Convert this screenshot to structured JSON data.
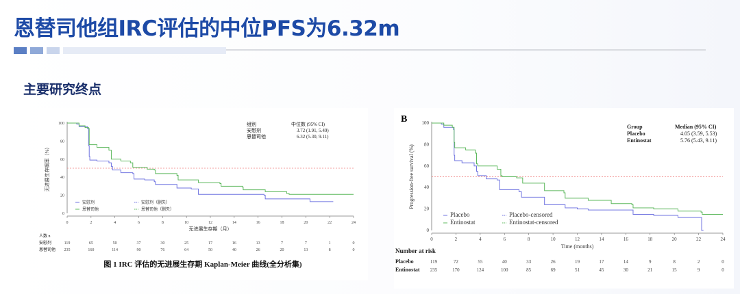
{
  "title": "恩替司他组IRC评估的中位PFS为6.32m",
  "subtitle": "主要研究终点",
  "colors": {
    "title": "#1d4aa6",
    "placebo": "#6f73e0",
    "entinostat": "#5cb85c",
    "median_line": "#f08080"
  },
  "chart_data": [
    {
      "type": "line",
      "panel_label": "",
      "xlabel": "无进展生存期（月）",
      "ylabel": "无进展生存概率（%）",
      "xlim": [
        0,
        24
      ],
      "ylim": [
        0,
        100
      ],
      "xticks": [
        0,
        2,
        4,
        6,
        8,
        10,
        12,
        14,
        16,
        18,
        20,
        22,
        24
      ],
      "yticks": [
        0,
        20,
        40,
        60,
        80,
        100
      ],
      "reference_line": 50,
      "summary": {
        "header": [
          "组别",
          "中位数 (95% CI)"
        ],
        "rows": [
          [
            "安慰剂",
            "3.72 (1.91, 5.49)"
          ],
          [
            "恩替司他",
            "6.32 (5.30, 9.11)"
          ]
        ]
      },
      "legend": [
        "安慰剂",
        "恩替司他",
        "安慰剂（删失）",
        "恩替司他（删失）"
      ],
      "series": [
        {
          "name": "安慰剂",
          "color": "#6f73e0",
          "points": [
            [
              0,
              100
            ],
            [
              0.8,
              99
            ],
            [
              1,
              96
            ],
            [
              1.7,
              94
            ],
            [
              1.8,
              75
            ],
            [
              1.85,
              63
            ],
            [
              1.9,
              59
            ],
            [
              2.5,
              58
            ],
            [
              3.5,
              56
            ],
            [
              3.7,
              52
            ],
            [
              3.8,
              48
            ],
            [
              4.5,
              45
            ],
            [
              5.5,
              44
            ],
            [
              5.6,
              38
            ],
            [
              6.5,
              37
            ],
            [
              7.3,
              35
            ],
            [
              7.4,
              32
            ],
            [
              9.2,
              28
            ],
            [
              10.4,
              27
            ],
            [
              11,
              21
            ],
            [
              16.5,
              20
            ],
            [
              16.6,
              16
            ],
            [
              20.3,
              16
            ],
            [
              20.35,
              13
            ],
            [
              22.3,
              13
            ]
          ]
        },
        {
          "name": "恩替司他",
          "color": "#5cb85c",
          "points": [
            [
              0,
              100
            ],
            [
              1,
              97
            ],
            [
              1.5,
              95
            ],
            [
              1.8,
              94
            ],
            [
              1.85,
              76
            ],
            [
              2.5,
              73
            ],
            [
              3.5,
              70
            ],
            [
              3.7,
              60
            ],
            [
              4.5,
              58
            ],
            [
              5.3,
              56
            ],
            [
              5.5,
              51
            ],
            [
              6.7,
              49
            ],
            [
              7.3,
              48
            ],
            [
              7.4,
              44
            ],
            [
              9.2,
              42
            ],
            [
              9.3,
              37
            ],
            [
              11,
              34
            ],
            [
              12.8,
              33
            ],
            [
              12.9,
              30
            ],
            [
              14.7,
              29
            ],
            [
              14.75,
              26
            ],
            [
              16.6,
              24
            ],
            [
              18.4,
              22
            ],
            [
              18.6,
              21
            ],
            [
              24,
              21
            ]
          ]
        }
      ],
      "risk_table": {
        "title": "人数 n",
        "rows": [
          {
            "label": "安慰剂",
            "values": [
              119,
              65,
              50,
              37,
              30,
              25,
              17,
              16,
              13,
              7,
              7,
              1,
              0
            ]
          },
          {
            "label": "恩替司他",
            "values": [
              235,
              160,
              114,
              90,
              76,
              64,
              50,
              40,
              26,
              20,
              13,
              8,
              0
            ]
          }
        ]
      },
      "caption": "图 1 IRC 评估的无进展生存期 Kaplan-Meier 曲线(全分析集)"
    },
    {
      "type": "line",
      "panel_label": "B",
      "xlabel": "Time (months)",
      "ylabel": "Progression-free survival (%)",
      "xlim": [
        0,
        24
      ],
      "ylim": [
        0,
        100
      ],
      "xticks": [
        0,
        2,
        4,
        6,
        8,
        10,
        12,
        14,
        16,
        18,
        20,
        22,
        24
      ],
      "yticks": [
        0,
        20,
        40,
        60,
        80,
        100
      ],
      "reference_line": 50,
      "summary": {
        "header": [
          "Group",
          "Median (95% CI)"
        ],
        "rows": [
          [
            "Placebo",
            "4.05 (3.59, 5.53)"
          ],
          [
            "Entinostat",
            "5.76 (5.43, 9.11)"
          ]
        ]
      },
      "legend": [
        "Placebo",
        "Entinostat",
        "Placebo-censored",
        "Entinostat-censored"
      ],
      "series": [
        {
          "name": "Placebo",
          "color": "#6f73e0",
          "points": [
            [
              0,
              100
            ],
            [
              0.8,
              99
            ],
            [
              1,
              96
            ],
            [
              1.8,
              94
            ],
            [
              1.85,
              70
            ],
            [
              1.9,
              65
            ],
            [
              2.5,
              63
            ],
            [
              3.5,
              60
            ],
            [
              3.7,
              55
            ],
            [
              3.8,
              51
            ],
            [
              4.5,
              48
            ],
            [
              5.4,
              47
            ],
            [
              5.6,
              38
            ],
            [
              7.2,
              36
            ],
            [
              7.4,
              31
            ],
            [
              9.2,
              31
            ],
            [
              9.3,
              24
            ],
            [
              11,
              21
            ],
            [
              12,
              20
            ],
            [
              12.9,
              19
            ],
            [
              16.5,
              19
            ],
            [
              16.6,
              15
            ],
            [
              18.3,
              14
            ],
            [
              20.2,
              14
            ],
            [
              20.3,
              12
            ],
            [
              22.2,
              12
            ],
            [
              22.25,
              0
            ],
            [
              22.4,
              0
            ]
          ]
        },
        {
          "name": "Entinostat",
          "color": "#5cb85c",
          "points": [
            [
              0,
              100
            ],
            [
              1,
              98
            ],
            [
              1.7,
              96
            ],
            [
              1.85,
              82
            ],
            [
              1.9,
              77
            ],
            [
              2.8,
              75
            ],
            [
              3.6,
              72
            ],
            [
              3.7,
              62
            ],
            [
              3.8,
              60
            ],
            [
              5.4,
              57
            ],
            [
              5.7,
              51
            ],
            [
              5.8,
              50
            ],
            [
              7,
              49
            ],
            [
              7.5,
              44
            ],
            [
              9.2,
              44
            ],
            [
              9.3,
              37
            ],
            [
              10.9,
              35
            ],
            [
              11,
              30
            ],
            [
              12.9,
              28
            ],
            [
              14.8,
              25
            ],
            [
              16.5,
              24
            ],
            [
              16.6,
              21
            ],
            [
              18.3,
              20
            ],
            [
              20.3,
              18
            ],
            [
              22.2,
              17
            ],
            [
              22.3,
              15
            ],
            [
              24,
              15
            ]
          ]
        }
      ],
      "risk_table": {
        "title": "Number at risk",
        "rows": [
          {
            "label": "Placebo",
            "values": [
              119,
              72,
              55,
              40,
              33,
              26,
              19,
              17,
              14,
              9,
              8,
              2,
              0
            ]
          },
          {
            "label": "Entinostat",
            "values": [
              235,
              170,
              124,
              100,
              85,
              69,
              51,
              45,
              30,
              21,
              15,
              9,
              0
            ]
          }
        ]
      },
      "caption": ""
    }
  ]
}
